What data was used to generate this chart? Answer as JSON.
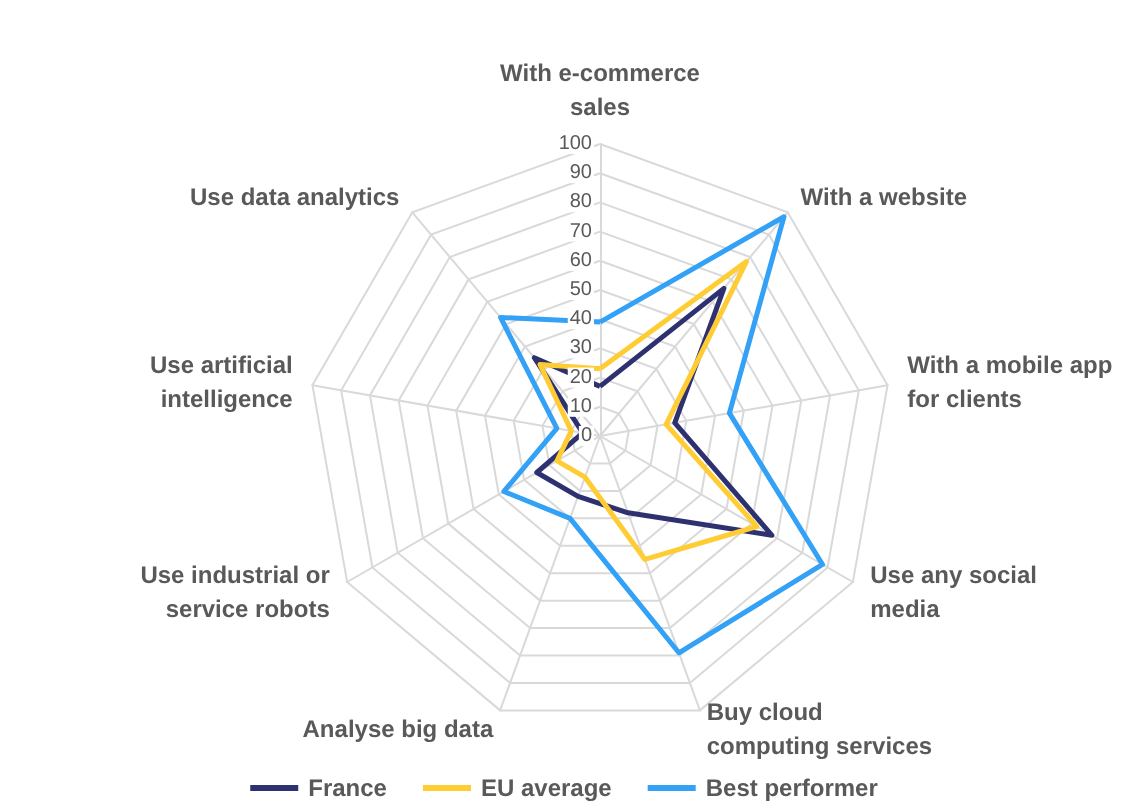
{
  "chart_data": {
    "type": "radar",
    "categories": [
      "With e-commerce\nsales",
      "With a website",
      "With a mobile app\nfor clients",
      "Use any social\nmedia",
      "Buy cloud\ncomputing services",
      "Analyse big data",
      "Use industrial or\nservice robots",
      "Use artificial\nintelligence",
      "Use data analytics"
    ],
    "series": [
      {
        "name": "France",
        "color": "#2e3170",
        "values": [
          17,
          66,
          26,
          68,
          28,
          22,
          25,
          6,
          35
        ]
      },
      {
        "name": "EU average",
        "color": "#ffcc33",
        "values": [
          23,
          78,
          23,
          62,
          45,
          15,
          17,
          10,
          32
        ]
      },
      {
        "name": "Best performer",
        "color": "#33a1f5",
        "values": [
          39,
          98,
          45,
          88,
          79,
          30,
          38,
          15,
          53
        ]
      }
    ],
    "ylim": [
      0,
      100
    ],
    "yticks": [
      0,
      10,
      20,
      30,
      40,
      50,
      60,
      70,
      80,
      90,
      100
    ],
    "legend": "bottom",
    "marker": "none",
    "line_style": "solid"
  }
}
